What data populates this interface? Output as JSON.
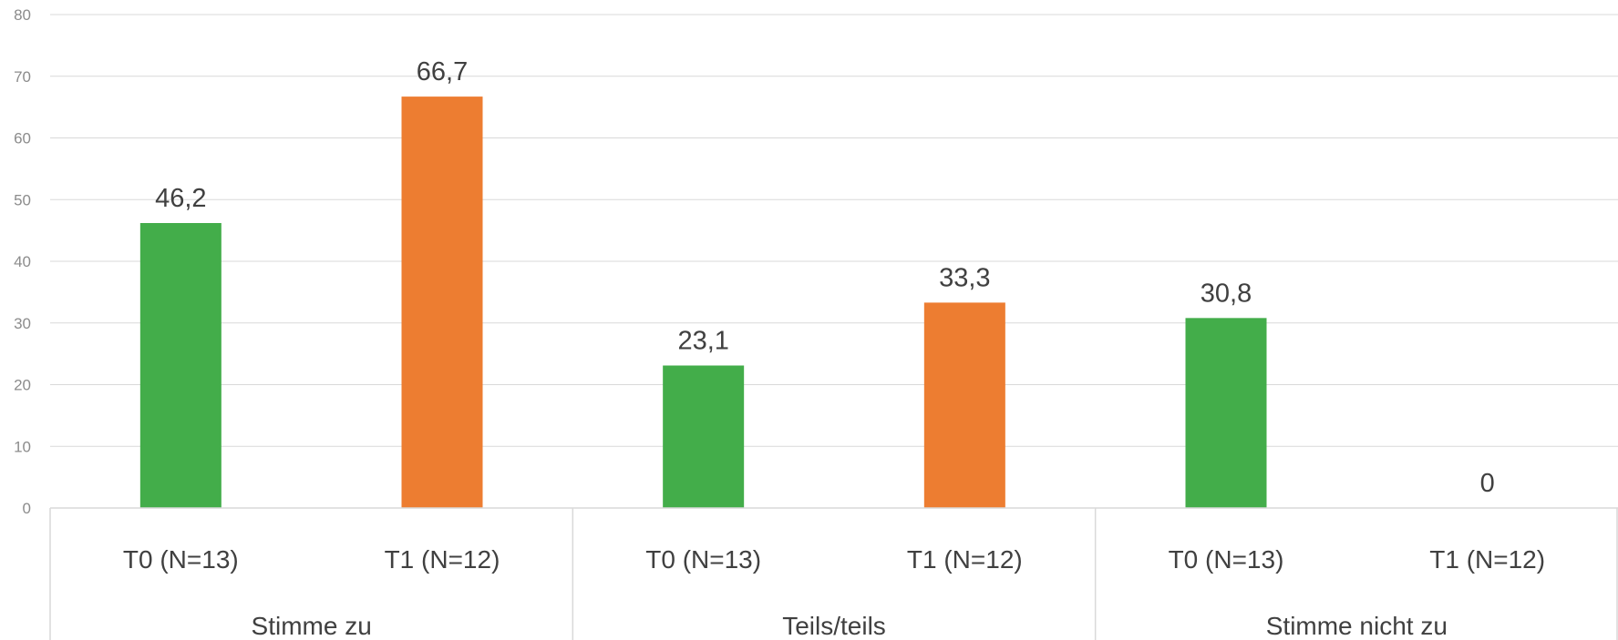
{
  "chart_data": {
    "type": "bar",
    "ylim": [
      0,
      80
    ],
    "yticks": [
      "0",
      "10",
      "20",
      "30",
      "40",
      "50",
      "60",
      "70",
      "80"
    ],
    "grid": true,
    "groups": [
      {
        "label": "Stimme zu",
        "bars": [
          {
            "category": "T0 (N=13)",
            "value": 46.2,
            "label": "46,2",
            "color": "#43ad4a"
          },
          {
            "category": "T1 (N=12)",
            "value": 66.7,
            "label": "66,7",
            "color": "#ed7d31"
          }
        ]
      },
      {
        "label": "Teils/teils",
        "bars": [
          {
            "category": "T0 (N=13)",
            "value": 23.1,
            "label": "23,1",
            "color": "#43ad4a"
          },
          {
            "category": "T1 (N=12)",
            "value": 33.3,
            "label": "33,3",
            "color": "#ed7d31"
          }
        ]
      },
      {
        "label": "Stimme nicht zu",
        "bars": [
          {
            "category": "T0 (N=13)",
            "value": 30.8,
            "label": "30,8",
            "color": "#43ad4a"
          },
          {
            "category": "T1 (N=12)",
            "value": 0,
            "label": "0",
            "color": "#ed7d31"
          }
        ]
      }
    ],
    "colors": {
      "t0": "#43ad4a",
      "t1": "#ed7d31",
      "grid": "#d9d9d9"
    }
  }
}
